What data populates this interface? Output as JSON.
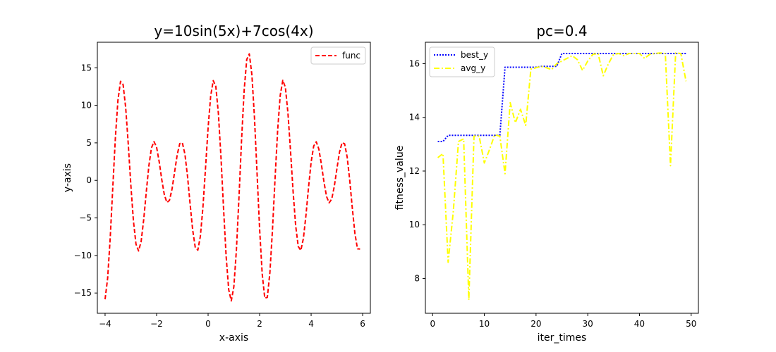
{
  "chart_data": [
    {
      "type": "line",
      "title": "y=10sin(5x)+7cos(4x)",
      "xlabel": "x-axis",
      "ylabel": "y-axis",
      "xlim": [
        -4.3,
        6.3
      ],
      "ylim": [
        -17.7,
        18.4
      ],
      "xticks": [
        -4,
        -2,
        0,
        2,
        4,
        6
      ],
      "yticks": [
        -15,
        -10,
        -5,
        0,
        5,
        10,
        15
      ],
      "grid": false,
      "legend": {
        "location": "upper right"
      },
      "series": [
        {
          "name": "func",
          "color": "#ff0000",
          "linestyle": "dashed",
          "expression": "10*sin(5*x)+7*cos(4*x)",
          "x_range": [
            -4,
            5.9
          ],
          "samples": 100
        }
      ]
    },
    {
      "type": "line",
      "title": "pc=0.4",
      "xlabel": "iter_times",
      "ylabel": "fitness_value",
      "xlim": [
        -1.4,
        51.4
      ],
      "ylim": [
        6.7,
        16.8
      ],
      "xticks": [
        0,
        10,
        20,
        30,
        40,
        50
      ],
      "yticks": [
        8,
        10,
        12,
        14,
        16
      ],
      "grid": false,
      "legend": {
        "location": "upper left"
      },
      "series": [
        {
          "name": "best_y",
          "color": "#0000ff",
          "linestyle": "dotted",
          "x": [
            1,
            2,
            3,
            4,
            5,
            6,
            7,
            8,
            9,
            10,
            11,
            12,
            13,
            14,
            15,
            16,
            17,
            18,
            19,
            20,
            21,
            22,
            23,
            24,
            25,
            26,
            27,
            28,
            29,
            30,
            31,
            32,
            33,
            34,
            35,
            36,
            37,
            38,
            39,
            40,
            41,
            42,
            43,
            44,
            45,
            46,
            47,
            48,
            49
          ],
          "y": [
            13.1,
            13.1,
            13.33,
            13.33,
            13.33,
            13.33,
            13.33,
            13.33,
            13.33,
            13.33,
            13.33,
            13.33,
            13.33,
            15.87,
            15.87,
            15.87,
            15.87,
            15.87,
            15.87,
            15.87,
            15.9,
            15.9,
            15.9,
            15.9,
            16.38,
            16.38,
            16.38,
            16.38,
            16.38,
            16.38,
            16.38,
            16.38,
            16.38,
            16.38,
            16.38,
            16.38,
            16.38,
            16.38,
            16.38,
            16.38,
            16.38,
            16.38,
            16.38,
            16.38,
            16.38,
            16.38,
            16.38,
            16.38,
            16.38
          ]
        },
        {
          "name": "avg_y",
          "color": "#ffff00",
          "linestyle": "dashdot",
          "x": [
            1,
            2,
            3,
            4,
            5,
            6,
            7,
            8,
            9,
            10,
            11,
            12,
            13,
            14,
            15,
            16,
            17,
            18,
            19,
            20,
            21,
            22,
            23,
            24,
            25,
            26,
            27,
            28,
            29,
            30,
            31,
            32,
            33,
            34,
            35,
            36,
            37,
            38,
            39,
            40,
            41,
            42,
            43,
            44,
            45,
            46,
            47,
            48,
            49
          ],
          "y": [
            12.5,
            12.65,
            8.6,
            10.5,
            13.1,
            13.2,
            7.2,
            13.3,
            13.3,
            12.3,
            12.8,
            13.35,
            13.3,
            11.9,
            14.55,
            13.8,
            14.3,
            13.7,
            15.8,
            15.85,
            15.9,
            15.85,
            15.78,
            16.0,
            16.1,
            16.2,
            16.3,
            16.15,
            15.75,
            16.1,
            16.35,
            16.38,
            15.55,
            16.0,
            16.35,
            16.38,
            16.3,
            16.38,
            16.38,
            16.38,
            16.2,
            16.35,
            16.38,
            16.4,
            16.38,
            12.2,
            16.4,
            16.38,
            15.35
          ]
        }
      ]
    }
  ]
}
